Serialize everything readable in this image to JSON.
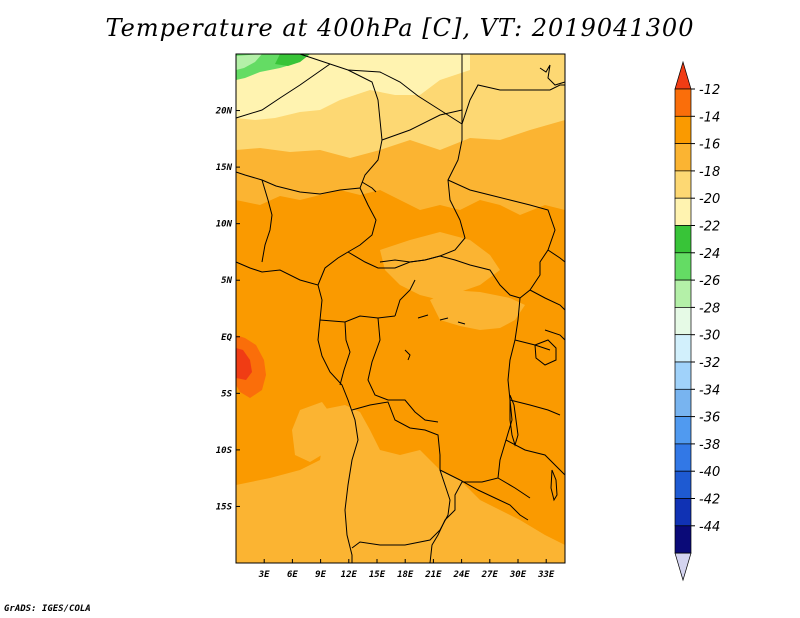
{
  "title": "Temperature at 400hPa [C], VT: 2019041300",
  "credit": "GrADS: IGES/COLA",
  "map": {
    "lon_range": [
      0,
      35
    ],
    "lat_range": [
      -20,
      25
    ],
    "lon_ticks": [
      {
        "value": 3,
        "label": "3E"
      },
      {
        "value": 6,
        "label": "6E"
      },
      {
        "value": 9,
        "label": "9E"
      },
      {
        "value": 12,
        "label": "12E"
      },
      {
        "value": 15,
        "label": "15E"
      },
      {
        "value": 18,
        "label": "18E"
      },
      {
        "value": 21,
        "label": "21E"
      },
      {
        "value": 24,
        "label": "24E"
      },
      {
        "value": 27,
        "label": "27E"
      },
      {
        "value": 30,
        "label": "30E"
      },
      {
        "value": 33,
        "label": "33E"
      }
    ],
    "lat_ticks": [
      {
        "value": 20,
        "label": "20N"
      },
      {
        "value": 15,
        "label": "15N"
      },
      {
        "value": 10,
        "label": "10N"
      },
      {
        "value": 5,
        "label": "5N"
      },
      {
        "value": 0,
        "label": "EQ"
      },
      {
        "value": -5,
        "label": "5S"
      },
      {
        "value": -10,
        "label": "10S"
      },
      {
        "value": -15,
        "label": "15S"
      }
    ]
  },
  "colorbar": {
    "levels": [
      "-12",
      "-14",
      "-16",
      "-18",
      "-20",
      "-22",
      "-24",
      "-26",
      "-28",
      "-30",
      "-32",
      "-34",
      "-36",
      "-38",
      "-40",
      "-42",
      "-44"
    ],
    "colors": [
      "#f03c14",
      "#fa6e0a",
      "#fa9a00",
      "#fbb432",
      "#fdd873",
      "#fff3b0",
      "#38c438",
      "#64dc64",
      "#b4f0a8",
      "#e6fae6",
      "#d2f0fc",
      "#a0d2fa",
      "#78b4f0",
      "#509af0",
      "#3278e6",
      "#1e5ad2",
      "#1032b4",
      "#0a0a78",
      "#d4d4f0"
    ]
  }
}
